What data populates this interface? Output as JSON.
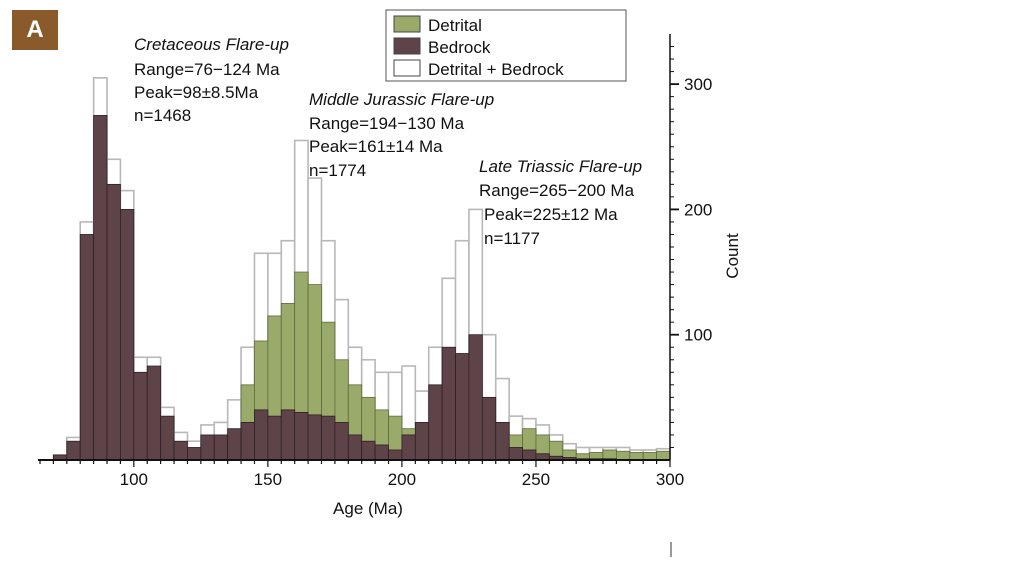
{
  "panel": {
    "label": "A",
    "color": "#8a5a2b"
  },
  "chart_data": {
    "type": "bar",
    "title": "",
    "xlabel": "Age (Ma)",
    "ylabel": "Count",
    "xlim": [
      65,
      300
    ],
    "ylim": [
      0,
      340
    ],
    "bin_width": 5,
    "x_ticks": [
      100,
      150,
      200,
      250,
      300
    ],
    "y_ticks": [
      100,
      200,
      300
    ],
    "bin_starts": [
      70,
      75,
      80,
      85,
      90,
      95,
      100,
      105,
      110,
      115,
      120,
      125,
      130,
      135,
      140,
      145,
      150,
      155,
      160,
      165,
      170,
      175,
      180,
      185,
      190,
      195,
      200,
      205,
      210,
      215,
      220,
      225,
      230,
      235,
      240,
      245,
      250,
      255,
      260,
      265,
      270,
      275,
      280,
      285,
      290,
      295
    ],
    "series": [
      {
        "name": "Detrital",
        "color": "#9aaa6a",
        "values": [
          0,
          0,
          0,
          0,
          0,
          0,
          0,
          0,
          0,
          0,
          0,
          0,
          5,
          20,
          60,
          95,
          115,
          125,
          150,
          140,
          110,
          80,
          60,
          50,
          40,
          35,
          25,
          10,
          15,
          15,
          20,
          20,
          25,
          25,
          20,
          25,
          20,
          15,
          8,
          5,
          6,
          8,
          7,
          6,
          6,
          7
        ]
      },
      {
        "name": "Bedrock",
        "color": "#5e4449",
        "values": [
          4,
          15,
          180,
          275,
          220,
          200,
          70,
          75,
          35,
          15,
          10,
          20,
          20,
          25,
          30,
          40,
          35,
          40,
          38,
          36,
          35,
          30,
          20,
          15,
          12,
          8,
          20,
          30,
          60,
          90,
          85,
          100,
          50,
          30,
          10,
          8,
          5,
          3,
          2,
          1,
          1,
          1,
          0,
          0,
          0,
          0
        ]
      },
      {
        "name": "Detrital + Bedrock",
        "color": "#ffffff",
        "values": [
          4,
          18,
          190,
          305,
          240,
          215,
          82,
          82,
          42,
          22,
          15,
          28,
          30,
          48,
          90,
          165,
          165,
          175,
          255,
          225,
          175,
          128,
          90,
          80,
          70,
          70,
          75,
          55,
          90,
          145,
          175,
          200,
          100,
          65,
          35,
          33,
          28,
          20,
          13,
          10,
          10,
          10,
          10,
          8,
          8,
          9
        ]
      }
    ],
    "legend_position": "top-center",
    "annotations": [
      {
        "title": "Cretaceous Flare-up",
        "range": "Range=76−124 Ma",
        "peak": "Peak=98±8.5Ma",
        "n": "n=1468"
      },
      {
        "title": "Middle Jurassic Flare-up",
        "range": "Range=194−130 Ma",
        "peak": "Peak=161±14 Ma",
        "n": "n=1774"
      },
      {
        "title": "Late Triassic Flare-up",
        "range": "Range=265−200 Ma",
        "peak": "Peak=225±12 Ma",
        "n": "n=1177"
      }
    ]
  }
}
